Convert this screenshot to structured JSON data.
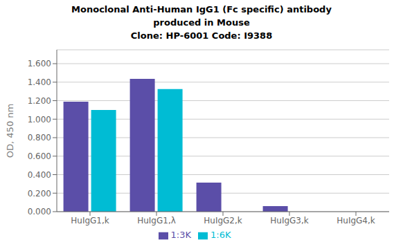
{
  "chart_data": {
    "type": "bar",
    "title": "Monoclonal Anti-Human IgG1 (Fc specific) antibody\nproduced in Mouse\nClone: HP-6001  Code: I9388",
    "categories": [
      "HuIgG1,k",
      "HuIgG1,λ",
      "HuIgG2,k",
      "HuIgG3,k",
      "HuIgG4,k"
    ],
    "series": [
      {
        "name": "1:3K",
        "color": "#5B4EA8",
        "values": [
          1.19,
          1.435,
          0.315,
          0.06,
          0.0
        ]
      },
      {
        "name": "1:6K",
        "color": "#00BCD4",
        "values": [
          1.1,
          1.325,
          0.0,
          0.0,
          0.0
        ]
      }
    ],
    "ylabel": "OD, 450 nm",
    "ylim": [
      0.0,
      1.75
    ],
    "yticks": [
      {
        "value": 0.0,
        "label": "0.000"
      },
      {
        "value": 0.2,
        "label": "0.200"
      },
      {
        "value": 0.4,
        "label": "0.400"
      },
      {
        "value": 0.6,
        "label": "0.600"
      },
      {
        "value": 0.8,
        "label": "0.800"
      },
      {
        "value": 1.0,
        "label": "1.000"
      },
      {
        "value": 1.2,
        "label": "1.200"
      },
      {
        "value": 1.4,
        "label": "1.400"
      },
      {
        "value": 1.6,
        "label": "1.600"
      }
    ],
    "grid": true,
    "legend": "bottom"
  }
}
